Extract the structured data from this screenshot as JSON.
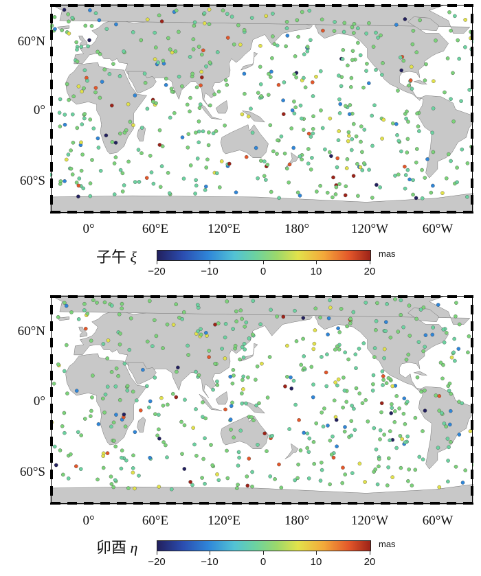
{
  "panels": [
    {
      "id": "xi",
      "title_cn": "子午",
      "title_sym": "ξ",
      "unit": "mas",
      "colorbar_ticks": [
        "−20",
        "−10",
        "0",
        "10",
        "20"
      ],
      "lat_labels": [
        "60°N",
        "0°",
        "60°S"
      ],
      "lon_labels": [
        "0°",
        "60°E",
        "120°E",
        "180°",
        "120°W",
        "60°W"
      ]
    },
    {
      "id": "eta",
      "title_cn": "卯酉",
      "title_sym": "η",
      "unit": "mas",
      "colorbar_ticks": [
        "−20",
        "−10",
        "0",
        "10",
        "20"
      ],
      "lat_labels": [
        "60°N",
        "0°",
        "60°S"
      ],
      "lon_labels": [
        "0°",
        "60°E",
        "120°E",
        "180°",
        "120°W",
        "60°W"
      ]
    }
  ],
  "colors": {
    "land": "#c8c8c8",
    "ocean": "#ffffff",
    "station_default": "#7cd27a",
    "colormap": [
      "#22205e",
      "#2f86d8",
      "#6cd2a0",
      "#e2e24b",
      "#e3572a",
      "#9d2318"
    ]
  }
}
